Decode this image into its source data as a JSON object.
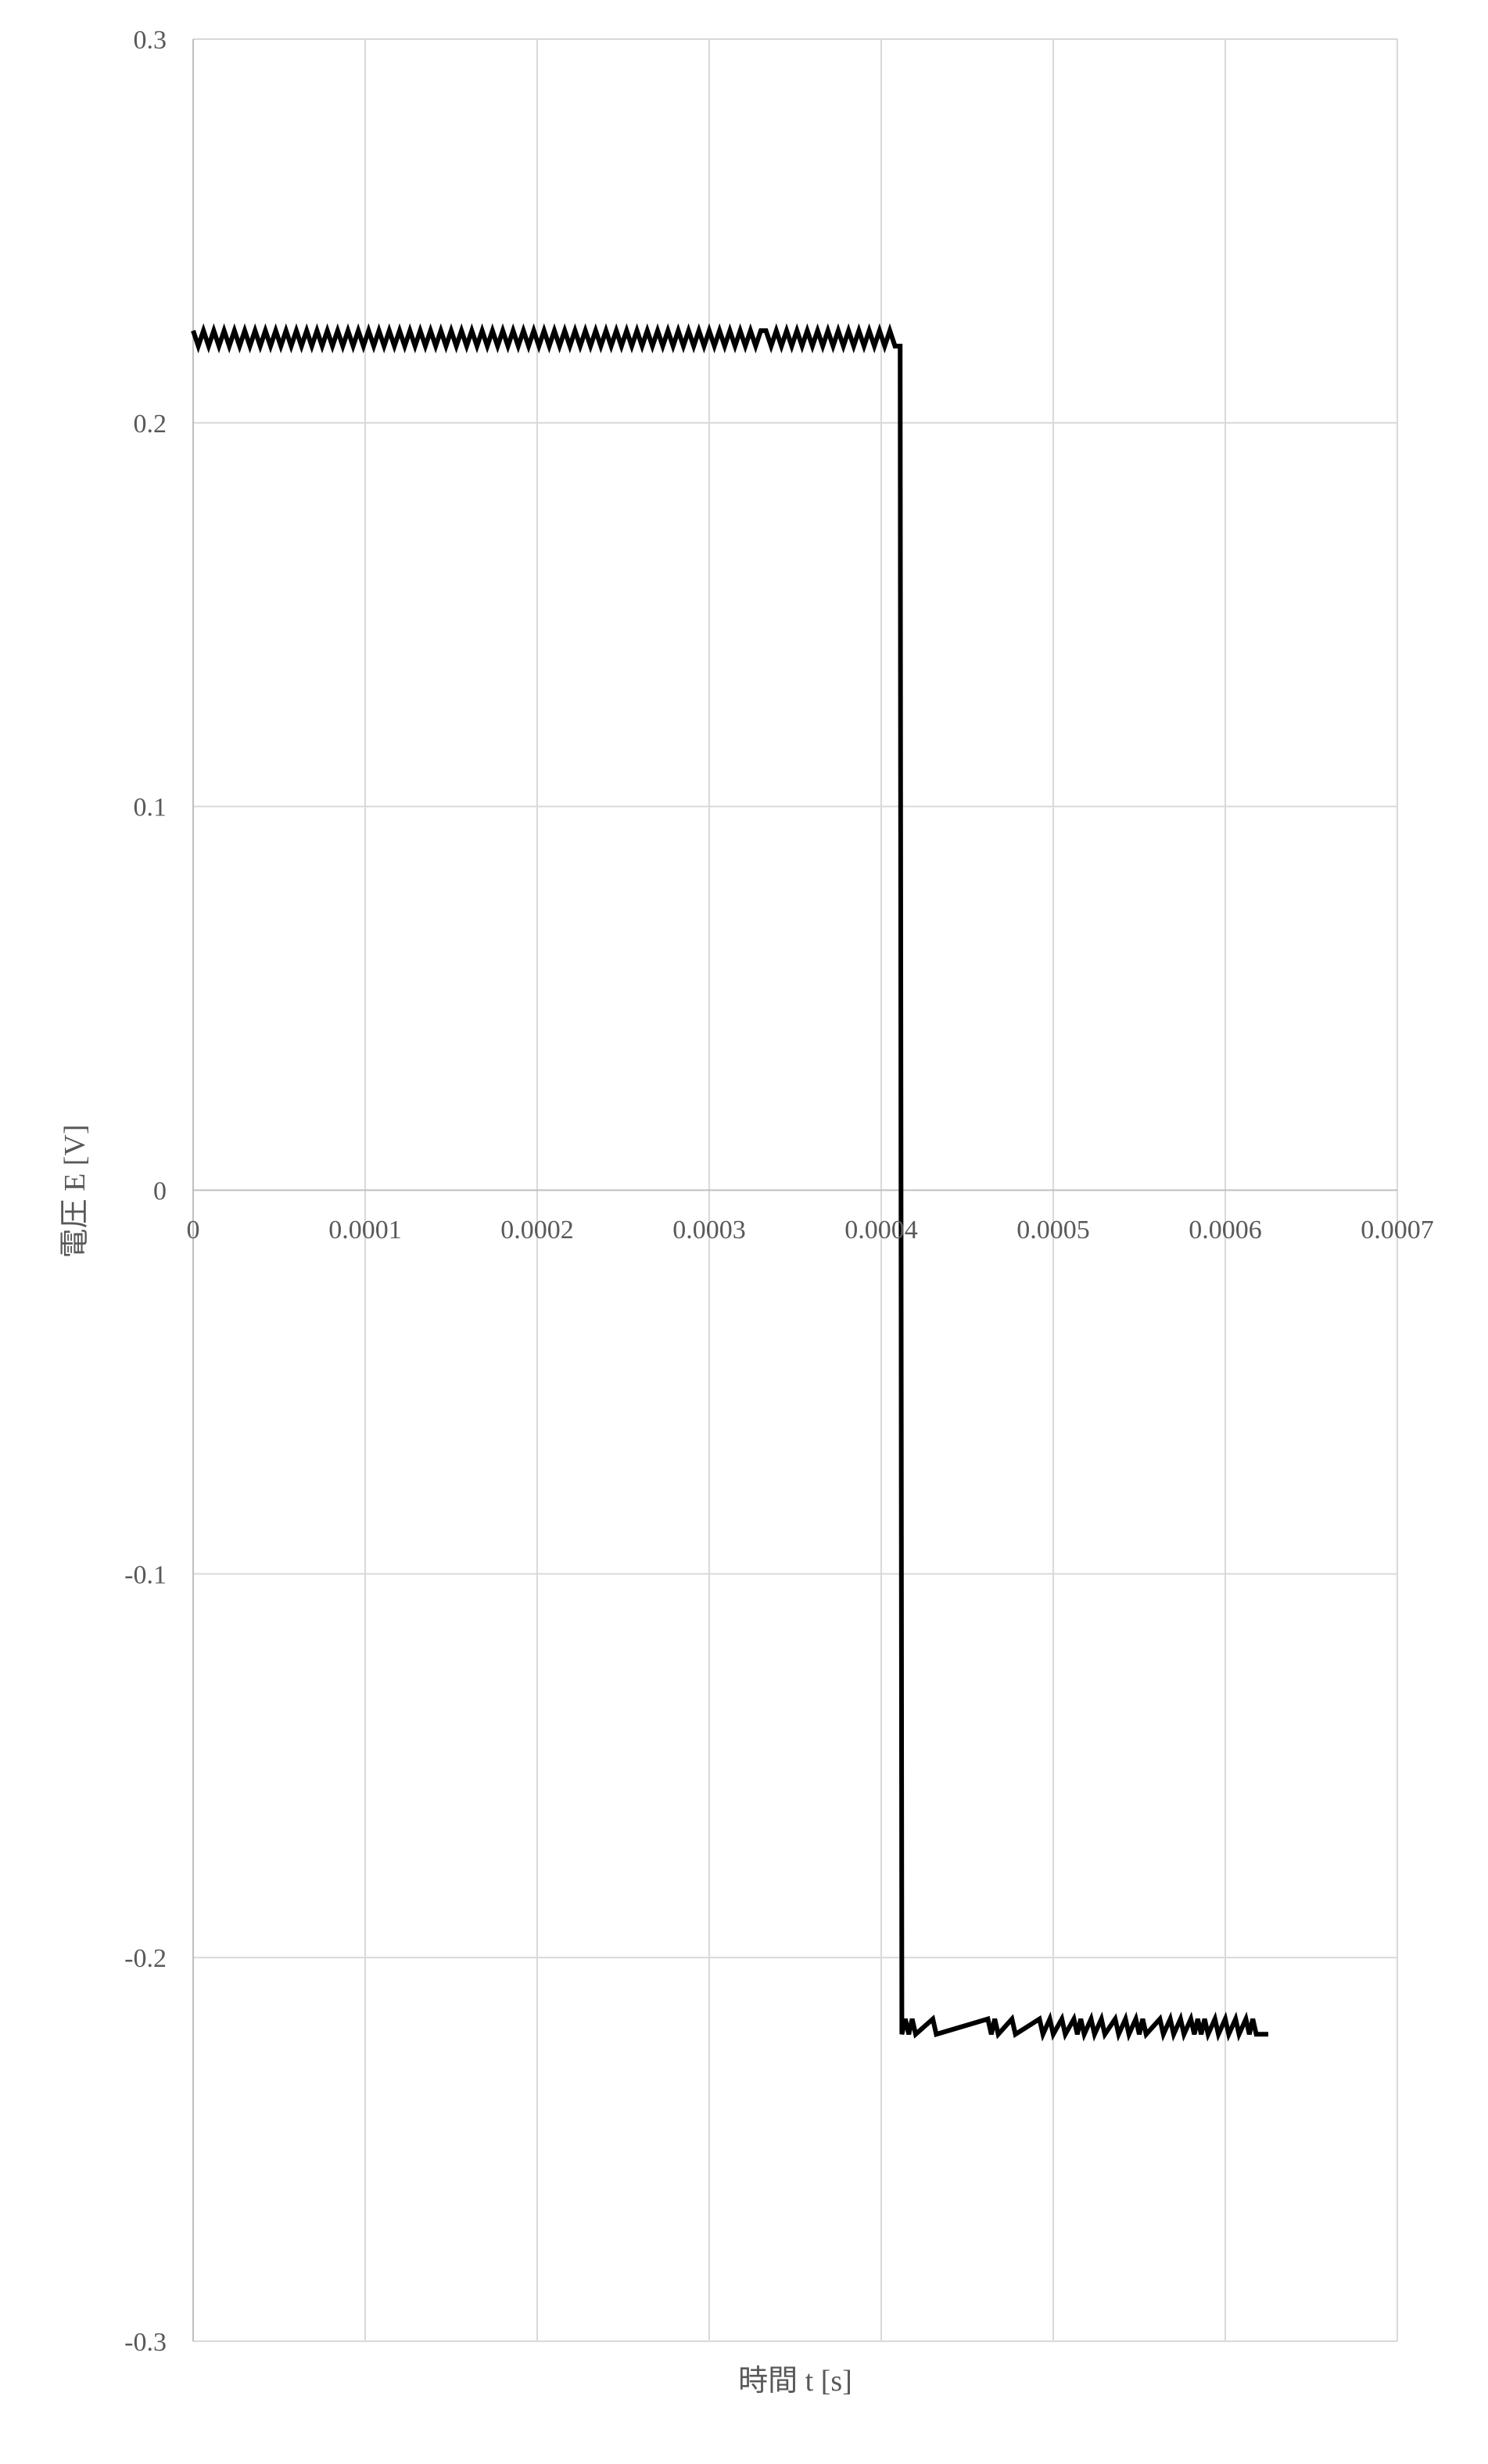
{
  "chart_data": {
    "type": "line",
    "xlabel": "時間 t [s]",
    "ylabel": "電圧 E [V]",
    "xlim": [
      0,
      0.0007
    ],
    "ylim": [
      -0.3,
      0.3
    ],
    "x_ticks": [
      0,
      0.0001,
      0.0002,
      0.0003,
      0.0004,
      0.0005,
      0.0006,
      0.0007
    ],
    "x_tick_labels": [
      "0",
      "0.0001",
      "0.0002",
      "0.0003",
      "0.0004",
      "0.0005",
      "0.0006",
      "0.0007"
    ],
    "y_ticks": [
      0.3,
      0.2,
      0.1,
      0,
      -0.1,
      -0.2,
      -0.3
    ],
    "y_tick_labels": [
      "0.3",
      "0.2",
      "0.1",
      "0",
      "-0.1",
      "-0.2",
      "-0.3"
    ],
    "grid": true,
    "line_color": "#000000",
    "series": [
      {
        "points": [
          [
            0,
            0.224
          ],
          [
            3e-06,
            0.22
          ],
          [
            6e-06,
            0.224
          ],
          [
            9e-06,
            0.22
          ],
          [
            1.2e-05,
            0.224
          ],
          [
            1.5e-05,
            0.22
          ],
          [
            1.8e-05,
            0.224
          ],
          [
            2.1e-05,
            0.22
          ],
          [
            2.4e-05,
            0.224
          ],
          [
            2.7e-05,
            0.22
          ],
          [
            3e-05,
            0.224
          ],
          [
            3.3e-05,
            0.22
          ],
          [
            3.6e-05,
            0.224
          ],
          [
            3.9e-05,
            0.22
          ],
          [
            4.2e-05,
            0.224
          ],
          [
            4.5e-05,
            0.22
          ],
          [
            4.8e-05,
            0.224
          ],
          [
            5.1e-05,
            0.22
          ],
          [
            5.4e-05,
            0.224
          ],
          [
            5.7e-05,
            0.22
          ],
          [
            6e-05,
            0.224
          ],
          [
            6.3e-05,
            0.22
          ],
          [
            6.6e-05,
            0.224
          ],
          [
            6.9e-05,
            0.22
          ],
          [
            7.2e-05,
            0.224
          ],
          [
            7.5e-05,
            0.22
          ],
          [
            7.8e-05,
            0.224
          ],
          [
            8.1e-05,
            0.22
          ],
          [
            8.4e-05,
            0.224
          ],
          [
            8.7e-05,
            0.22
          ],
          [
            9e-05,
            0.224
          ],
          [
            9.3e-05,
            0.22
          ],
          [
            9.6e-05,
            0.224
          ],
          [
            9.9e-05,
            0.22
          ],
          [
            0.000102,
            0.224
          ],
          [
            0.000105,
            0.22
          ],
          [
            0.000108,
            0.224
          ],
          [
            0.000111,
            0.22
          ],
          [
            0.000114,
            0.224
          ],
          [
            0.000117,
            0.22
          ],
          [
            0.00012,
            0.224
          ],
          [
            0.000123,
            0.22
          ],
          [
            0.000126,
            0.224
          ],
          [
            0.000129,
            0.22
          ],
          [
            0.000132,
            0.224
          ],
          [
            0.000135,
            0.22
          ],
          [
            0.000138,
            0.224
          ],
          [
            0.000141,
            0.22
          ],
          [
            0.000144,
            0.224
          ],
          [
            0.000147,
            0.22
          ],
          [
            0.00015,
            0.224
          ],
          [
            0.000153,
            0.22
          ],
          [
            0.000156,
            0.224
          ],
          [
            0.000159,
            0.22
          ],
          [
            0.000162,
            0.224
          ],
          [
            0.000165,
            0.22
          ],
          [
            0.000168,
            0.224
          ],
          [
            0.000171,
            0.22
          ],
          [
            0.000174,
            0.224
          ],
          [
            0.000177,
            0.22
          ],
          [
            0.00018,
            0.224
          ],
          [
            0.000183,
            0.22
          ],
          [
            0.000186,
            0.224
          ],
          [
            0.000189,
            0.22
          ],
          [
            0.000192,
            0.224
          ],
          [
            0.000195,
            0.22
          ],
          [
            0.000198,
            0.224
          ],
          [
            0.000201,
            0.22
          ],
          [
            0.000204,
            0.224
          ],
          [
            0.000207,
            0.22
          ],
          [
            0.00021,
            0.224
          ],
          [
            0.000213,
            0.22
          ],
          [
            0.000216,
            0.224
          ],
          [
            0.000219,
            0.22
          ],
          [
            0.000222,
            0.224
          ],
          [
            0.000225,
            0.22
          ],
          [
            0.000228,
            0.224
          ],
          [
            0.000231,
            0.22
          ],
          [
            0.000234,
            0.224
          ],
          [
            0.000237,
            0.22
          ],
          [
            0.00024,
            0.224
          ],
          [
            0.000243,
            0.22
          ],
          [
            0.000246,
            0.224
          ],
          [
            0.000249,
            0.22
          ],
          [
            0.000252,
            0.224
          ],
          [
            0.000255,
            0.22
          ],
          [
            0.000258,
            0.224
          ],
          [
            0.000261,
            0.22
          ],
          [
            0.000264,
            0.224
          ],
          [
            0.000267,
            0.22
          ],
          [
            0.00027,
            0.224
          ],
          [
            0.000273,
            0.22
          ],
          [
            0.000276,
            0.224
          ],
          [
            0.000279,
            0.22
          ],
          [
            0.000282,
            0.224
          ],
          [
            0.000285,
            0.22
          ],
          [
            0.000288,
            0.224
          ],
          [
            0.000291,
            0.22
          ],
          [
            0.000294,
            0.224
          ],
          [
            0.000297,
            0.22
          ],
          [
            0.0003,
            0.224
          ],
          [
            0.000303,
            0.22
          ],
          [
            0.000306,
            0.224
          ],
          [
            0.000309,
            0.22
          ],
          [
            0.000312,
            0.224
          ],
          [
            0.000315,
            0.22
          ],
          [
            0.000318,
            0.224
          ],
          [
            0.000321,
            0.22
          ],
          [
            0.000324,
            0.224
          ],
          [
            0.000327,
            0.22
          ],
          [
            0.00033,
            0.224
          ],
          [
            0.000333,
            0.224
          ],
          [
            0.000336,
            0.22
          ],
          [
            0.000339,
            0.224
          ],
          [
            0.000342,
            0.22
          ],
          [
            0.000345,
            0.224
          ],
          [
            0.000348,
            0.22
          ],
          [
            0.000351,
            0.224
          ],
          [
            0.000354,
            0.22
          ],
          [
            0.000357,
            0.224
          ],
          [
            0.00036,
            0.22
          ],
          [
            0.000363,
            0.224
          ],
          [
            0.000366,
            0.22
          ],
          [
            0.000369,
            0.224
          ],
          [
            0.000372,
            0.22
          ],
          [
            0.000375,
            0.224
          ],
          [
            0.000378,
            0.22
          ],
          [
            0.000381,
            0.224
          ],
          [
            0.000384,
            0.22
          ],
          [
            0.000387,
            0.224
          ],
          [
            0.00039,
            0.22
          ],
          [
            0.000393,
            0.224
          ],
          [
            0.000396,
            0.22
          ],
          [
            0.000399,
            0.224
          ],
          [
            0.000402,
            0.22
          ],
          [
            0.000405,
            0.224
          ],
          [
            0.000408,
            0.22
          ],
          [
            0.000411,
            0.22
          ],
          [
            0.000412,
            -0.22
          ],
          [
            0.000414,
            -0.216
          ],
          [
            0.000416,
            -0.22
          ],
          [
            0.000418,
            -0.216
          ],
          [
            0.00042,
            -0.22
          ],
          [
            0.00043,
            -0.216
          ],
          [
            0.000432,
            -0.22
          ],
          [
            0.000462,
            -0.216
          ],
          [
            0.000464,
            -0.22
          ],
          [
            0.000466,
            -0.216
          ],
          [
            0.000468,
            -0.22
          ],
          [
            0.000476,
            -0.216
          ],
          [
            0.000478,
            -0.22
          ],
          [
            0.000492,
            -0.216
          ],
          [
            0.000494,
            -0.22
          ],
          [
            0.000498,
            -0.216
          ],
          [
            0.0005,
            -0.22
          ],
          [
            0.000505,
            -0.216
          ],
          [
            0.000507,
            -0.22
          ],
          [
            0.000512,
            -0.216
          ],
          [
            0.000514,
            -0.22
          ],
          [
            0.000516,
            -0.216
          ],
          [
            0.000518,
            -0.22
          ],
          [
            0.000522,
            -0.216
          ],
          [
            0.000524,
            -0.22
          ],
          [
            0.000528,
            -0.216
          ],
          [
            0.00053,
            -0.22
          ],
          [
            0.000536,
            -0.216
          ],
          [
            0.000538,
            -0.22
          ],
          [
            0.000542,
            -0.216
          ],
          [
            0.000544,
            -0.22
          ],
          [
            0.000548,
            -0.216
          ],
          [
            0.00055,
            -0.22
          ],
          [
            0.000552,
            -0.216
          ],
          [
            0.000554,
            -0.22
          ],
          [
            0.000562,
            -0.216
          ],
          [
            0.000564,
            -0.22
          ],
          [
            0.000568,
            -0.216
          ],
          [
            0.00057,
            -0.22
          ],
          [
            0.000574,
            -0.216
          ],
          [
            0.000576,
            -0.22
          ],
          [
            0.00058,
            -0.216
          ],
          [
            0.000582,
            -0.22
          ],
          [
            0.000584,
            -0.216
          ],
          [
            0.000586,
            -0.22
          ],
          [
            0.000588,
            -0.216
          ],
          [
            0.00059,
            -0.22
          ],
          [
            0.000594,
            -0.216
          ],
          [
            0.000596,
            -0.22
          ],
          [
            0.0006,
            -0.216
          ],
          [
            0.000602,
            -0.22
          ],
          [
            0.000606,
            -0.216
          ],
          [
            0.000608,
            -0.22
          ],
          [
            0.000612,
            -0.216
          ],
          [
            0.000614,
            -0.22
          ],
          [
            0.000616,
            -0.216
          ],
          [
            0.000618,
            -0.22
          ],
          [
            0.000625,
            -0.22
          ]
        ]
      }
    ]
  }
}
